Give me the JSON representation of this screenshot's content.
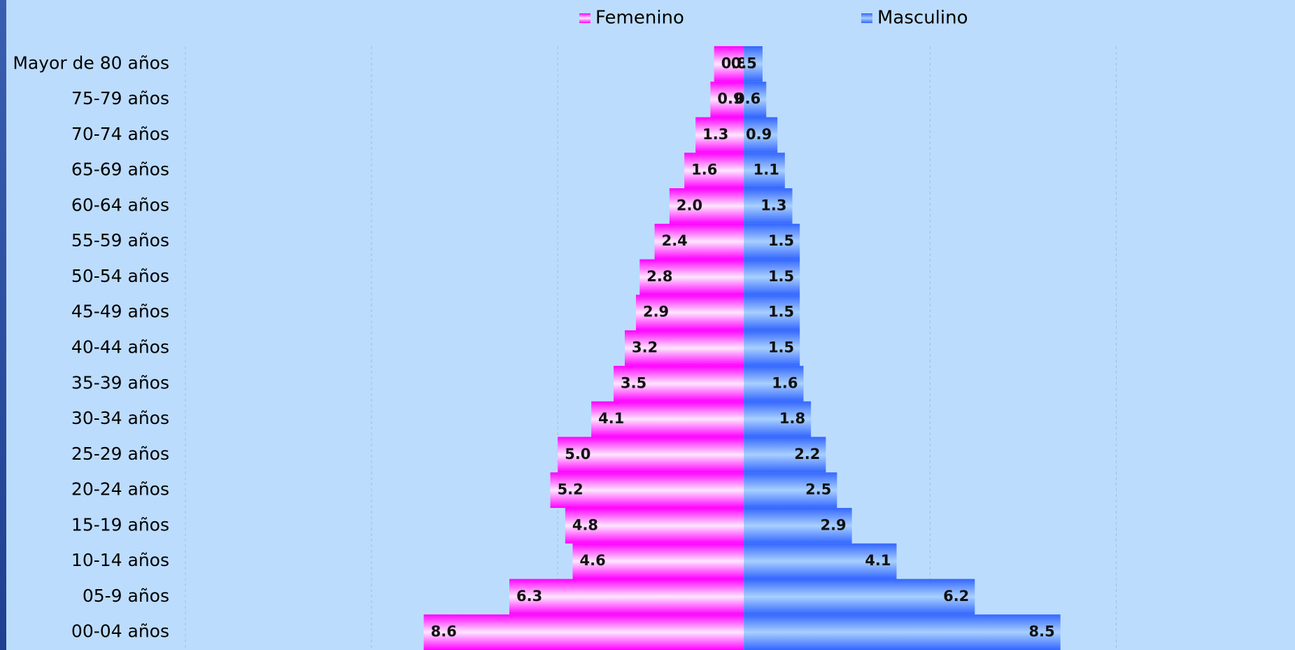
{
  "chart_data": {
    "type": "pyramid",
    "categories": [
      "Mayor de 80 años",
      "75-79 años",
      "70-74 años",
      "65-69 años",
      "60-64 años",
      "55-59 años",
      "50-54 años",
      "45-49 años",
      "40-44 años",
      "35-39 años",
      "30-34 años",
      "25-29 años",
      "20-24 años",
      "15-19 años",
      "10-14 años",
      "05-9 años",
      "00-04 años"
    ],
    "series": [
      {
        "name": "Femenino",
        "color": "#ff00ff",
        "side": "left",
        "values": [
          0.8,
          0.9,
          1.3,
          1.6,
          2.0,
          2.4,
          2.8,
          2.9,
          3.2,
          3.5,
          4.1,
          5.0,
          5.2,
          4.8,
          4.6,
          6.3,
          8.6
        ],
        "value_labels": [
          "0.8",
          "0.9",
          "1.3",
          "1.6",
          "2.0",
          "2.4",
          "2.8",
          "2.9",
          "3.2",
          "3.5",
          "4.1",
          "5.0",
          "5.2",
          "4.8",
          "4.6",
          "6.3",
          "8.6"
        ]
      },
      {
        "name": "Masculino",
        "color": "#3366ff",
        "side": "right",
        "values": [
          0.5,
          0.6,
          0.9,
          1.1,
          1.3,
          1.5,
          1.5,
          1.5,
          1.5,
          1.6,
          1.8,
          2.2,
          2.5,
          2.9,
          4.1,
          6.2,
          8.5
        ],
        "value_labels": [
          "0.5",
          "0.6",
          "0.9",
          "1.1",
          "1.3",
          "1.5",
          "1.5",
          "1.5",
          "1.5",
          "1.6",
          "1.8",
          "2.2",
          "2.5",
          "2.9",
          "4.1",
          "6.2",
          "8.5"
        ]
      }
    ],
    "xlim": [
      -15,
      14.8
    ],
    "xticks": [
      -15,
      -10,
      -5,
      0,
      5,
      10
    ],
    "grid": true
  }
}
